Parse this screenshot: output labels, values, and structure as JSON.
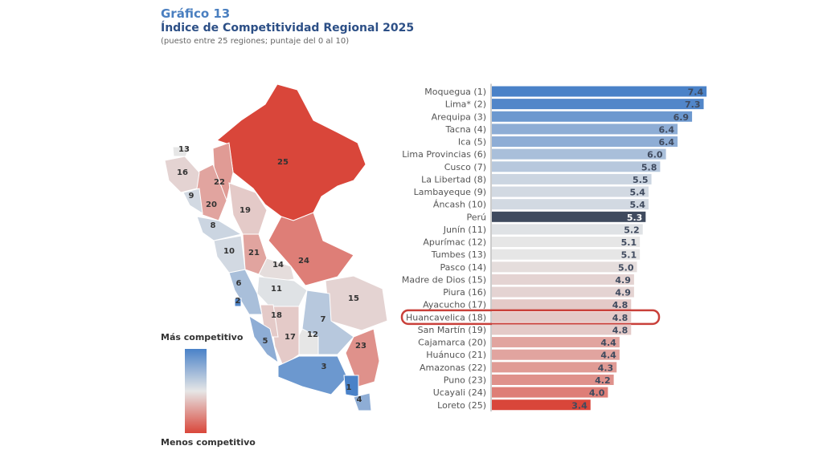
{
  "header": {
    "label": "Gráfico 13",
    "title": "Índice de Competitividad Regional 2025",
    "subtitle": "(puesto entre 25 regiones; puntaje del 0 al 10)"
  },
  "legend": {
    "top": "Más competitivo",
    "bottom": "Menos competitivo",
    "colors": {
      "high": "#4a82c8",
      "mid": "#e6e6e6",
      "low": "#d9463a"
    }
  },
  "highlight": "Huancavelica (18)",
  "colors": {
    "peru": "#3f4a5e",
    "highlight_outline": "#c9403a"
  },
  "chart_data": {
    "type": "bar",
    "orientation": "horizontal",
    "xlim": [
      0,
      10
    ],
    "categories": [
      "Moquegua (1)",
      "Lima* (2)",
      "Arequipa (3)",
      "Tacna (4)",
      "Ica (5)",
      "Lima Provincias (6)",
      "Cusco (7)",
      "La Libertad (8)",
      "Lambayeque (9)",
      "Áncash (10)",
      "Perú",
      "Junín (11)",
      "Apurímac (12)",
      "Tumbes (13)",
      "Pasco (14)",
      "Madre de Dios (15)",
      "Piura (16)",
      "Ayacucho (17)",
      "Huancavelica (18)",
      "San Martín (19)",
      "Cajamarca (20)",
      "Huánuco (21)",
      "Amazonas (22)",
      "Puno (23)",
      "Ucayali (24)",
      "Loreto (25)"
    ],
    "values": [
      7.4,
      7.3,
      6.9,
      6.4,
      6.4,
      6.0,
      5.8,
      5.5,
      5.4,
      5.4,
      5.3,
      5.2,
      5.1,
      5.1,
      5.0,
      4.9,
      4.9,
      4.8,
      4.8,
      4.8,
      4.4,
      4.4,
      4.3,
      4.2,
      4.0,
      3.4
    ],
    "labels": [
      "7.4",
      "7.3",
      "6.9",
      "6.4",
      "6.4",
      "6.0",
      "5.8",
      "5.5",
      "5.4",
      "5.4",
      "5.3",
      "5.2",
      "5.1",
      "5.1",
      "5.0",
      "4.9",
      "4.9",
      "4.8",
      "4.8",
      "4.8",
      "4.4",
      "4.4",
      "4.3",
      "4.2",
      "4.0",
      "3.4"
    ]
  },
  "map": {
    "type": "choropleth",
    "regions": [
      {
        "rank": "25",
        "name": "Loreto"
      },
      {
        "rank": "22",
        "name": "Amazonas"
      },
      {
        "rank": "20",
        "name": "Cajamarca"
      },
      {
        "rank": "19",
        "name": "San Martín"
      },
      {
        "rank": "21",
        "name": "Huánuco"
      },
      {
        "rank": "24",
        "name": "Ucayali"
      },
      {
        "rank": "14",
        "name": "Pasco"
      },
      {
        "rank": "11",
        "name": "Junín"
      },
      {
        "rank": "15",
        "name": "Madre de Dios"
      },
      {
        "rank": "7",
        "name": "Cusco"
      },
      {
        "rank": "23",
        "name": "Puno"
      },
      {
        "rank": "12",
        "name": "Apurímac"
      },
      {
        "rank": "17",
        "name": "Ayacucho"
      },
      {
        "rank": "18",
        "name": "Huancavelica"
      },
      {
        "rank": "6",
        "name": "Lima Provincias"
      },
      {
        "rank": "2",
        "name": "Lima"
      },
      {
        "rank": "5",
        "name": "Ica"
      },
      {
        "rank": "3",
        "name": "Arequipa"
      },
      {
        "rank": "1",
        "name": "Moquegua"
      },
      {
        "rank": "4",
        "name": "Tacna"
      },
      {
        "rank": "10",
        "name": "Áncash"
      },
      {
        "rank": "8",
        "name": "La Libertad"
      },
      {
        "rank": "9",
        "name": "Lambayeque"
      },
      {
        "rank": "16",
        "name": "Piura"
      },
      {
        "rank": "13",
        "name": "Tumbes"
      }
    ]
  }
}
